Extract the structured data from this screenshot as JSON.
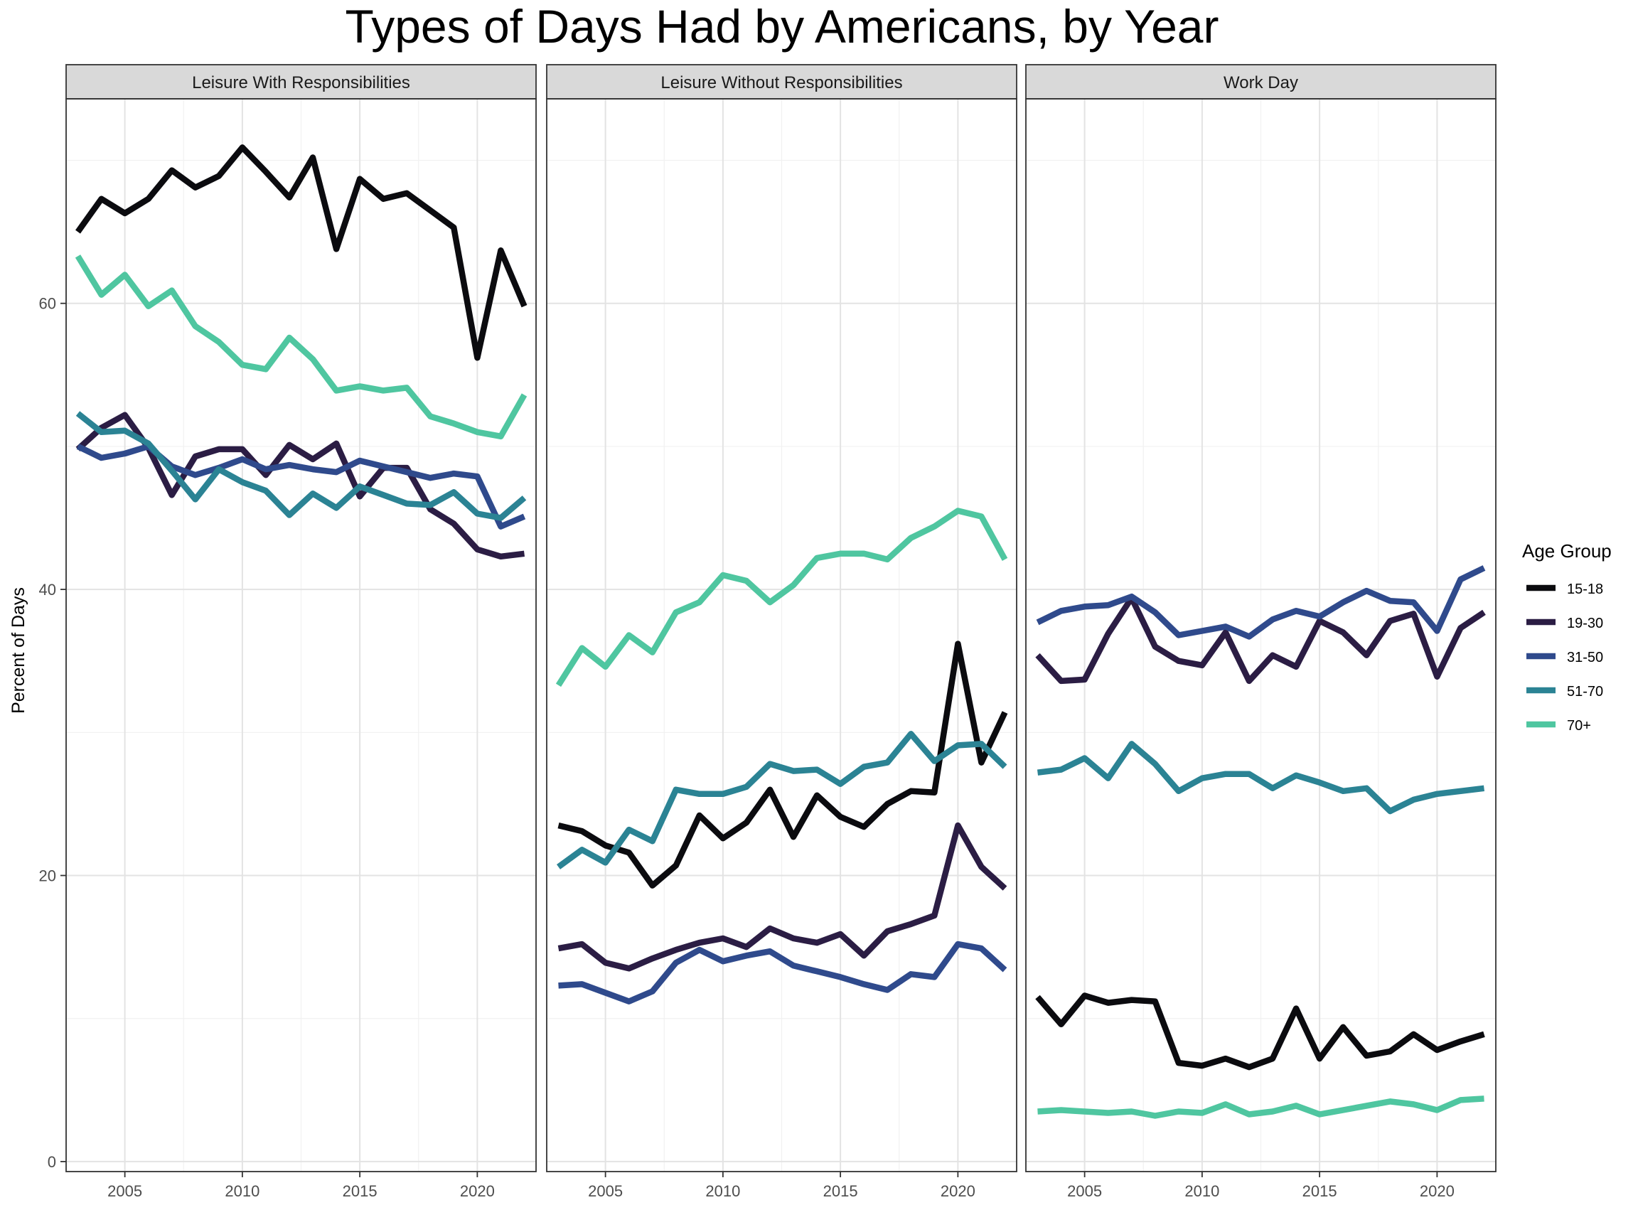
{
  "chart_data": {
    "type": "line",
    "title": "Types of Days Had by Americans, by Year",
    "xlabel": "",
    "ylabel": "Percent of Days",
    "x_ticks": [
      2005,
      2010,
      2015,
      2020
    ],
    "y_ticks": [
      0,
      20,
      40,
      60
    ],
    "xlim": [
      2002.5,
      2022.5
    ],
    "ylim": [
      -0.7,
      74.3
    ],
    "grid": true,
    "legend": {
      "title": "Age Group",
      "placement": "right",
      "entries": [
        "15-18",
        "19-30",
        "31-50",
        "51-70",
        "70+"
      ]
    },
    "colors": {
      "15-18": "#0b0b0f",
      "19-30": "#2b1d44",
      "31-50": "#2f4a8c",
      "51-70": "#2b8394",
      "70+": "#4fc6a0"
    },
    "x": [
      2003,
      2004,
      2005,
      2006,
      2007,
      2008,
      2009,
      2010,
      2011,
      2012,
      2013,
      2014,
      2015,
      2016,
      2017,
      2018,
      2019,
      2020,
      2021,
      2022
    ],
    "panels": [
      {
        "label": "Leisure With Responsibilities",
        "series": [
          {
            "name": "15-18",
            "values": [
              65.0,
              67.3,
              66.3,
              67.3,
              69.3,
              68.1,
              68.9,
              70.9,
              69.2,
              67.4,
              70.2,
              63.8,
              68.7,
              67.3,
              67.7,
              66.5,
              65.3,
              56.2,
              63.7,
              59.8
            ]
          },
          {
            "name": "19-30",
            "values": [
              49.8,
              51.3,
              52.2,
              49.9,
              46.6,
              49.3,
              49.8,
              49.8,
              48.0,
              50.1,
              49.1,
              50.2,
              46.5,
              48.5,
              48.5,
              45.6,
              44.6,
              42.8,
              42.3,
              42.5
            ]
          },
          {
            "name": "31-50",
            "values": [
              50.0,
              49.2,
              49.5,
              50.0,
              48.6,
              48.0,
              48.5,
              49.1,
              48.4,
              48.7,
              48.4,
              48.2,
              49.0,
              48.6,
              48.2,
              47.8,
              48.1,
              47.9,
              44.4,
              45.1
            ]
          },
          {
            "name": "51-70",
            "values": [
              52.3,
              51.0,
              51.1,
              50.2,
              48.3,
              46.3,
              48.4,
              47.5,
              46.9,
              45.2,
              46.7,
              45.7,
              47.2,
              46.6,
              46.0,
              45.9,
              46.8,
              45.3,
              45.0,
              46.4
            ]
          },
          {
            "name": "70+",
            "values": [
              63.3,
              60.6,
              62.0,
              59.8,
              60.9,
              58.4,
              57.3,
              55.7,
              55.4,
              57.6,
              56.1,
              53.9,
              54.2,
              53.9,
              54.1,
              52.1,
              51.6,
              51.0,
              50.7,
              53.6
            ]
          }
        ]
      },
      {
        "label": "Leisure Without Responsibilities",
        "series": [
          {
            "name": "15-18",
            "values": [
              23.5,
              23.1,
              22.1,
              21.6,
              19.3,
              20.7,
              24.2,
              22.6,
              23.7,
              26.0,
              22.7,
              25.6,
              24.1,
              23.4,
              25.0,
              25.9,
              25.8,
              36.2,
              27.9,
              31.4
            ]
          },
          {
            "name": "19-30",
            "values": [
              14.9,
              15.2,
              13.9,
              13.5,
              14.2,
              14.8,
              15.3,
              15.6,
              15.0,
              16.3,
              15.6,
              15.3,
              15.9,
              14.4,
              16.1,
              16.6,
              17.2,
              23.5,
              20.6,
              19.1
            ]
          },
          {
            "name": "31-50",
            "values": [
              12.3,
              12.4,
              11.8,
              11.2,
              11.9,
              13.9,
              14.8,
              14.0,
              14.4,
              14.7,
              13.7,
              13.3,
              12.9,
              12.4,
              12.0,
              13.1,
              12.9,
              15.2,
              14.9,
              13.4
            ]
          },
          {
            "name": "51-70",
            "values": [
              20.6,
              21.8,
              20.9,
              23.2,
              22.4,
              26.0,
              25.7,
              25.7,
              26.2,
              27.8,
              27.3,
              27.4,
              26.4,
              27.6,
              27.9,
              29.9,
              28.0,
              29.1,
              29.2,
              27.6
            ]
          },
          {
            "name": "70+",
            "values": [
              33.3,
              35.9,
              34.6,
              36.8,
              35.6,
              38.4,
              39.1,
              41.0,
              40.6,
              39.1,
              40.3,
              42.2,
              42.5,
              42.5,
              42.1,
              43.6,
              44.4,
              45.5,
              45.1,
              42.1
            ]
          }
        ]
      },
      {
        "label": "Work Day",
        "series": [
          {
            "name": "15-18",
            "values": [
              11.5,
              9.6,
              11.6,
              11.1,
              11.3,
              11.2,
              6.9,
              6.7,
              7.2,
              6.6,
              7.2,
              10.7,
              7.2,
              9.4,
              7.4,
              7.7,
              8.9,
              7.8,
              8.4,
              8.9
            ]
          },
          {
            "name": "19-30",
            "values": [
              35.4,
              33.6,
              33.7,
              36.9,
              39.4,
              36.0,
              35.0,
              34.7,
              37.0,
              33.6,
              35.4,
              34.6,
              37.8,
              37.0,
              35.4,
              37.8,
              38.3,
              33.9,
              37.3,
              38.4
            ]
          },
          {
            "name": "31-50",
            "values": [
              37.7,
              38.5,
              38.8,
              38.9,
              39.5,
              38.4,
              36.8,
              37.1,
              37.4,
              36.7,
              37.9,
              38.5,
              38.1,
              39.1,
              39.9,
              39.2,
              39.1,
              37.1,
              40.7,
              41.5
            ]
          },
          {
            "name": "51-70",
            "values": [
              27.2,
              27.4,
              28.2,
              26.8,
              29.2,
              27.8,
              25.9,
              26.8,
              27.1,
              27.1,
              26.1,
              27.0,
              26.5,
              25.9,
              26.1,
              24.5,
              25.3,
              25.7,
              25.9,
              26.1
            ]
          },
          {
            "name": "70+",
            "values": [
              3.5,
              3.6,
              3.5,
              3.4,
              3.5,
              3.2,
              3.5,
              3.4,
              4.0,
              3.3,
              3.5,
              3.9,
              3.3,
              3.6,
              3.9,
              4.2,
              4.0,
              3.6,
              4.3,
              4.4
            ]
          }
        ]
      }
    ]
  }
}
